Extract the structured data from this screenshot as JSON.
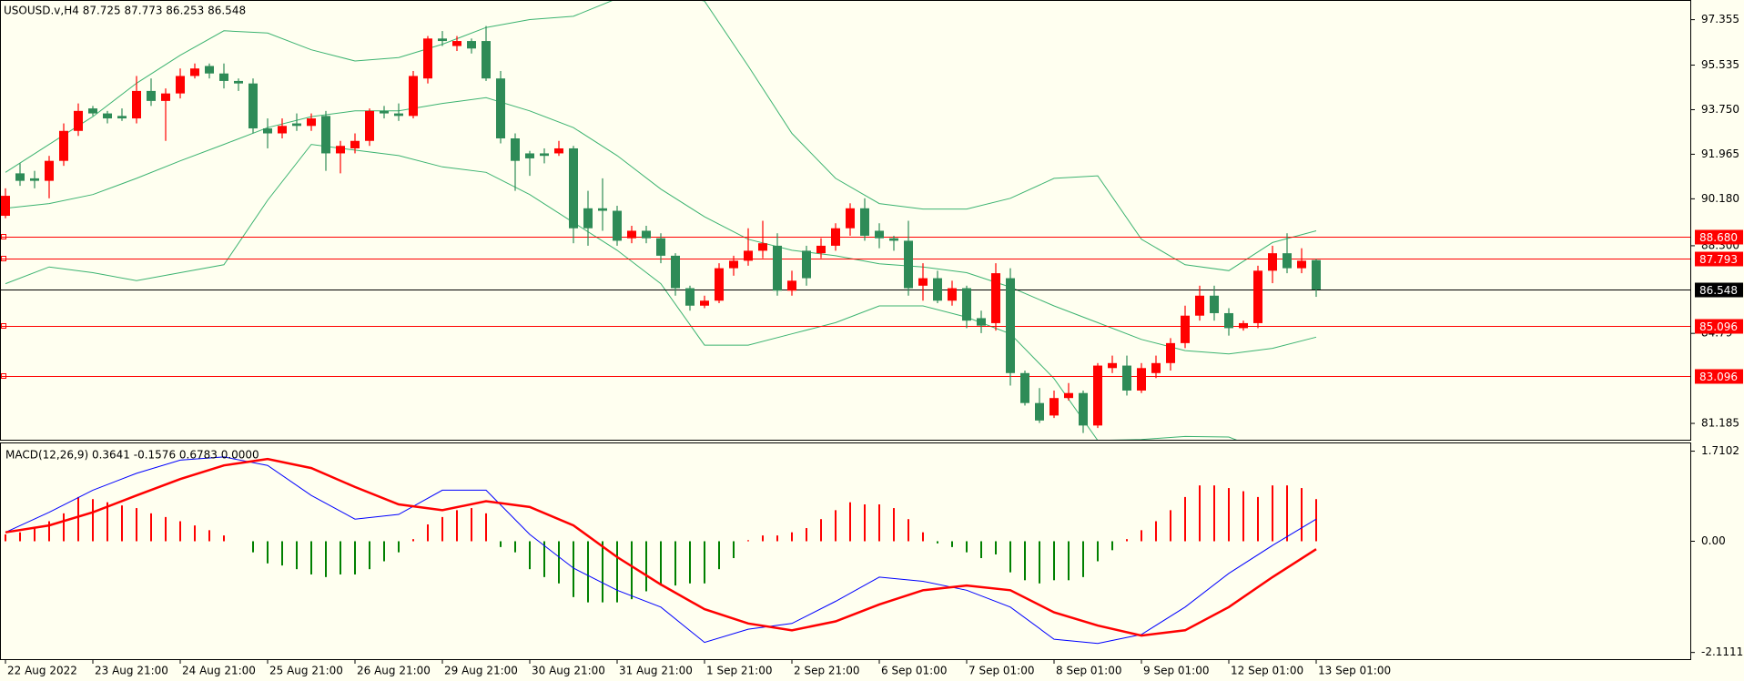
{
  "chart_data": [
    {
      "type": "candlestick",
      "title": "USOUSD.v,H4  87.725 87.773 86.253 86.548",
      "ohlc": {
        "open": [
          89.5,
          91.2,
          91.0,
          90.9,
          91.7,
          92.9,
          93.8,
          93.6,
          93.5,
          93.4,
          94.5,
          94.1,
          94.4,
          95.1,
          95.5,
          95.2,
          94.9,
          94.8,
          93.0,
          92.8,
          93.2,
          93.1,
          93.5,
          92.0,
          92.2,
          92.5,
          93.7,
          93.6,
          93.5,
          95.0,
          96.6,
          96.3,
          96.5,
          96.5,
          95.0,
          92.6,
          92.0,
          92.0,
          92.0,
          92.2,
          89.8,
          89.8,
          89.7,
          88.6,
          88.9,
          88.6,
          87.9,
          86.6,
          85.9,
          86.1,
          87.4,
          87.7,
          88.1,
          88.3,
          86.5,
          88.1,
          88.0,
          88.3,
          89.0,
          89.8,
          88.9,
          88.6,
          88.5,
          86.7,
          87.0,
          86.1,
          86.6,
          85.4,
          85.2,
          87.0,
          83.2,
          82.0,
          81.5,
          82.2,
          82.4,
          81.1,
          83.4,
          83.5,
          82.5,
          83.2,
          83.6,
          84.4,
          85.5,
          86.3,
          85.6,
          85.0,
          85.2,
          87.3,
          88.0,
          87.4,
          87.725
        ],
        "high": [
          90.6,
          91.6,
          91.3,
          91.9,
          93.2,
          94.0,
          93.9,
          93.7,
          93.8,
          95.1,
          95.0,
          94.6,
          95.4,
          95.6,
          95.6,
          95.6,
          95.0,
          95.0,
          93.4,
          93.4,
          93.6,
          93.6,
          93.7,
          92.5,
          92.8,
          93.8,
          93.9,
          94.0,
          95.3,
          96.7,
          96.9,
          96.7,
          96.6,
          97.1,
          95.3,
          92.8,
          92.1,
          92.2,
          92.5,
          92.3,
          90.5,
          91.0,
          89.9,
          89.1,
          89.1,
          88.8,
          88.0,
          86.7,
          86.3,
          87.6,
          87.9,
          89.0,
          89.3,
          88.8,
          87.3,
          88.3,
          88.6,
          89.2,
          90.0,
          90.2,
          89.2,
          88.7,
          89.3,
          87.6,
          87.3,
          86.9,
          86.7,
          85.7,
          87.6,
          87.4,
          83.3,
          82.6,
          82.5,
          82.8,
          82.5,
          83.6,
          83.9,
          83.9,
          83.6,
          83.9,
          84.6,
          85.9,
          86.7,
          86.7,
          85.8,
          85.3,
          87.5,
          88.3,
          88.8,
          88.2,
          87.773
        ],
        "low": [
          89.4,
          90.7,
          90.6,
          90.2,
          91.5,
          92.7,
          93.5,
          93.2,
          93.3,
          93.2,
          93.9,
          92.5,
          94.2,
          95.0,
          95.0,
          94.6,
          94.5,
          92.8,
          92.2,
          92.6,
          92.9,
          92.9,
          91.3,
          91.2,
          92.0,
          92.3,
          93.4,
          93.3,
          93.4,
          94.8,
          96.3,
          96.1,
          96.0,
          94.9,
          92.4,
          90.5,
          91.1,
          91.6,
          91.9,
          88.4,
          88.3,
          88.9,
          88.3,
          88.4,
          88.4,
          87.6,
          86.3,
          85.7,
          85.8,
          86.0,
          87.1,
          87.5,
          87.8,
          86.3,
          86.3,
          86.7,
          87.8,
          88.1,
          88.7,
          88.5,
          88.2,
          88.1,
          86.3,
          86.1,
          86.0,
          85.9,
          85.0,
          84.8,
          84.9,
          82.7,
          81.9,
          81.2,
          81.4,
          82.1,
          80.8,
          81.0,
          83.2,
          82.3,
          82.4,
          83.0,
          83.3,
          84.2,
          85.3,
          85.3,
          84.7,
          84.9,
          85.0,
          86.8,
          87.2,
          87.2,
          86.253
        ],
        "close": [
          90.3,
          90.9,
          90.9,
          91.7,
          92.9,
          93.7,
          93.6,
          93.4,
          93.4,
          94.5,
          94.1,
          94.4,
          95.1,
          95.4,
          95.2,
          94.9,
          94.8,
          93.0,
          92.8,
          93.1,
          93.1,
          93.4,
          92.0,
          92.3,
          92.5,
          93.7,
          93.6,
          93.5,
          95.1,
          96.6,
          96.5,
          96.5,
          96.2,
          95.0,
          92.6,
          91.7,
          91.8,
          91.9,
          92.2,
          89.0,
          89.0,
          89.7,
          88.5,
          88.9,
          88.6,
          87.9,
          86.6,
          85.9,
          86.1,
          87.4,
          87.7,
          88.1,
          88.4,
          86.5,
          86.9,
          87.0,
          88.3,
          89.0,
          89.8,
          88.7,
          88.6,
          88.5,
          86.6,
          87.0,
          86.1,
          86.6,
          85.3,
          85.1,
          87.2,
          83.2,
          82.0,
          81.3,
          82.2,
          82.4,
          81.1,
          83.5,
          83.6,
          82.5,
          83.4,
          83.6,
          84.4,
          85.5,
          86.3,
          85.6,
          85.0,
          85.2,
          87.3,
          88.0,
          87.4,
          87.7,
          86.548
        ]
      },
      "up_color": "#ff0000",
      "down_color": "#2e8b57",
      "bands": {
        "color": "#3cb371",
        "x": [
          0,
          3,
          6,
          9,
          12,
          15,
          18,
          21,
          24,
          27,
          30,
          33,
          36,
          39,
          42,
          45,
          48,
          51,
          54,
          57,
          60,
          63,
          66,
          69,
          72,
          75,
          78,
          81,
          84,
          87,
          90
        ],
        "upper": [
          91.24,
          92.36,
          93.47,
          94.81,
          95.93,
          96.91,
          96.82,
          96.15,
          95.7,
          95.84,
          96.37,
          97.04,
          97.36,
          97.49,
          98.2,
          98.5,
          98.1,
          95.5,
          92.8,
          91.0,
          89.99,
          89.77,
          89.77,
          90.2,
          91.0,
          91.1,
          88.56,
          87.54,
          87.3,
          88.43,
          88.9
        ],
        "middle": [
          89.8,
          89.99,
          90.35,
          91.0,
          91.7,
          92.36,
          93.03,
          93.47,
          93.7,
          93.7,
          94.0,
          94.23,
          93.7,
          93.03,
          91.91,
          90.57,
          89.46,
          88.56,
          88.12,
          87.9,
          87.58,
          87.45,
          87.22,
          86.64,
          85.89,
          85.22,
          84.55,
          84.1,
          83.97,
          84.19,
          84.64
        ],
        "lower": [
          86.78,
          87.45,
          87.22,
          86.9,
          87.22,
          87.54,
          90.12,
          92.36,
          92.13,
          91.91,
          91.46,
          91.24,
          90.35,
          89.23,
          88.12,
          86.78,
          84.32,
          84.32,
          84.77,
          85.22,
          85.89,
          85.89,
          85.44,
          84.77,
          82.98,
          80.5,
          80.54,
          80.66,
          80.64,
          79.95,
          80.38
        ]
      },
      "levels": [
        {
          "value": 88.68,
          "label": "88.680"
        },
        {
          "value": 87.793,
          "label": "87.793"
        },
        {
          "value": 85.096,
          "label": "85.096"
        },
        {
          "value": 83.096,
          "label": "83.096"
        }
      ],
      "level_color": "#ff0000",
      "bid_line": 86.548,
      "ylim": [
        80.53,
        98.07
      ],
      "yticks": [
        97.355,
        95.535,
        {
          "value": 93.75,
          "label": "93.750"
        },
        91.965,
        {
          "value": 90.18,
          "label": "90.180"
        },
        {
          "value": 88.3,
          "label": "88.300"
        },
        84.79,
        81.185
      ]
    },
    {
      "type": "macd",
      "title": "MACD(12,26,9) 0.3641 -0.1576 0.6783 0.0000",
      "categories": [
        "22 Aug 2022",
        null,
        null,
        null,
        null,
        null,
        "23 Aug 21:00",
        null,
        null,
        null,
        null,
        null,
        "24 Aug 21:00",
        null,
        null,
        null,
        null,
        null,
        "25 Aug 21:00",
        null,
        null,
        null,
        null,
        null,
        "26 Aug 21:00",
        null,
        null,
        null,
        null,
        null,
        "29 Aug 21:00",
        null,
        null,
        null,
        null,
        null,
        "30 Aug 21:00",
        null,
        null,
        null,
        null,
        null,
        "31 Aug 21:00",
        null,
        null,
        null,
        null,
        null,
        "1 Sep 21:00",
        null,
        null,
        null,
        null,
        null,
        "2 Sep 21:00",
        null,
        null,
        null,
        null,
        null,
        "6 Sep 01:00",
        null,
        null,
        null,
        null,
        null,
        "7 Sep 01:00",
        null,
        null,
        null,
        null,
        null,
        "8 Sep 01:00",
        null,
        null,
        null,
        null,
        null,
        "9 Sep 01:00",
        null,
        null,
        null,
        null,
        null,
        "12 Sep 01:00",
        null,
        null,
        null,
        null,
        null,
        "13 Sep 01:00"
      ],
      "histogram": [
        0.13,
        0.17,
        0.25,
        0.38,
        0.53,
        0.84,
        0.8,
        0.74,
        0.68,
        0.63,
        0.53,
        0.46,
        0.38,
        0.3,
        0.21,
        0.11,
        0.0,
        -0.21,
        -0.42,
        -0.46,
        -0.53,
        -0.63,
        -0.68,
        -0.63,
        -0.63,
        -0.53,
        -0.38,
        -0.21,
        0.04,
        0.32,
        0.46,
        0.59,
        0.63,
        0.53,
        -0.11,
        -0.21,
        -0.53,
        -0.68,
        -0.8,
        -1.06,
        -1.16,
        -1.16,
        -1.16,
        -1.1,
        -0.95,
        -0.84,
        -0.84,
        -0.8,
        -0.8,
        -0.53,
        -0.32,
        0.02,
        0.11,
        0.11,
        0.17,
        0.25,
        0.42,
        0.59,
        0.74,
        0.7,
        0.7,
        0.63,
        0.42,
        0.17,
        -0.04,
        -0.11,
        -0.21,
        -0.32,
        -0.25,
        -0.59,
        -0.74,
        -0.8,
        -0.74,
        -0.74,
        -0.68,
        -0.38,
        -0.17,
        0.04,
        0.21,
        0.38,
        0.59,
        0.84,
        1.06,
        1.06,
        1.01,
        0.95,
        0.84,
        1.06,
        1.06,
        1.01,
        0.8
      ],
      "pos_color": "#ff0000",
      "neg_color": "#008000",
      "macd": {
        "color": "#0000ff",
        "x": [
          0,
          3,
          6,
          9,
          12,
          15,
          18,
          21,
          24,
          27,
          30,
          33,
          36,
          39,
          42,
          45,
          48,
          51,
          54,
          57,
          60,
          63,
          66,
          69,
          72,
          75,
          78,
          81,
          84,
          87,
          90
        ],
        "values": [
          0.17,
          0.55,
          0.97,
          1.29,
          1.54,
          1.6,
          1.44,
          0.87,
          0.42,
          0.51,
          0.97,
          0.97,
          0.13,
          -0.51,
          -0.93,
          -1.25,
          -1.92,
          -1.67,
          -1.56,
          -1.14,
          -0.68,
          -0.76,
          -0.93,
          -1.25,
          -1.86,
          -1.94,
          -1.77,
          -1.25,
          -0.61,
          -0.08,
          0.42
        ]
      },
      "signal": {
        "color": "#ff0000",
        "x": [
          0,
          3,
          6,
          9,
          12,
          15,
          18,
          21,
          24,
          27,
          30,
          33,
          36,
          39,
          42,
          45,
          48,
          51,
          54,
          57,
          60,
          63,
          66,
          69,
          72,
          75,
          78,
          81,
          84,
          87,
          90
        ],
        "values": [
          0.17,
          0.3,
          0.55,
          0.87,
          1.18,
          1.44,
          1.56,
          1.39,
          1.03,
          0.7,
          0.59,
          0.76,
          0.65,
          0.3,
          -0.3,
          -0.82,
          -1.29,
          -1.56,
          -1.69,
          -1.52,
          -1.2,
          -0.93,
          -0.84,
          -0.93,
          -1.35,
          -1.6,
          -1.79,
          -1.69,
          -1.25,
          -0.68,
          -0.15
        ]
      },
      "ylim": [
        -2.238,
        1.858
      ],
      "yticks": [
        1.7102,
        {
          "value": 0,
          "label": "0.00"
        },
        -2.1111
      ]
    }
  ]
}
